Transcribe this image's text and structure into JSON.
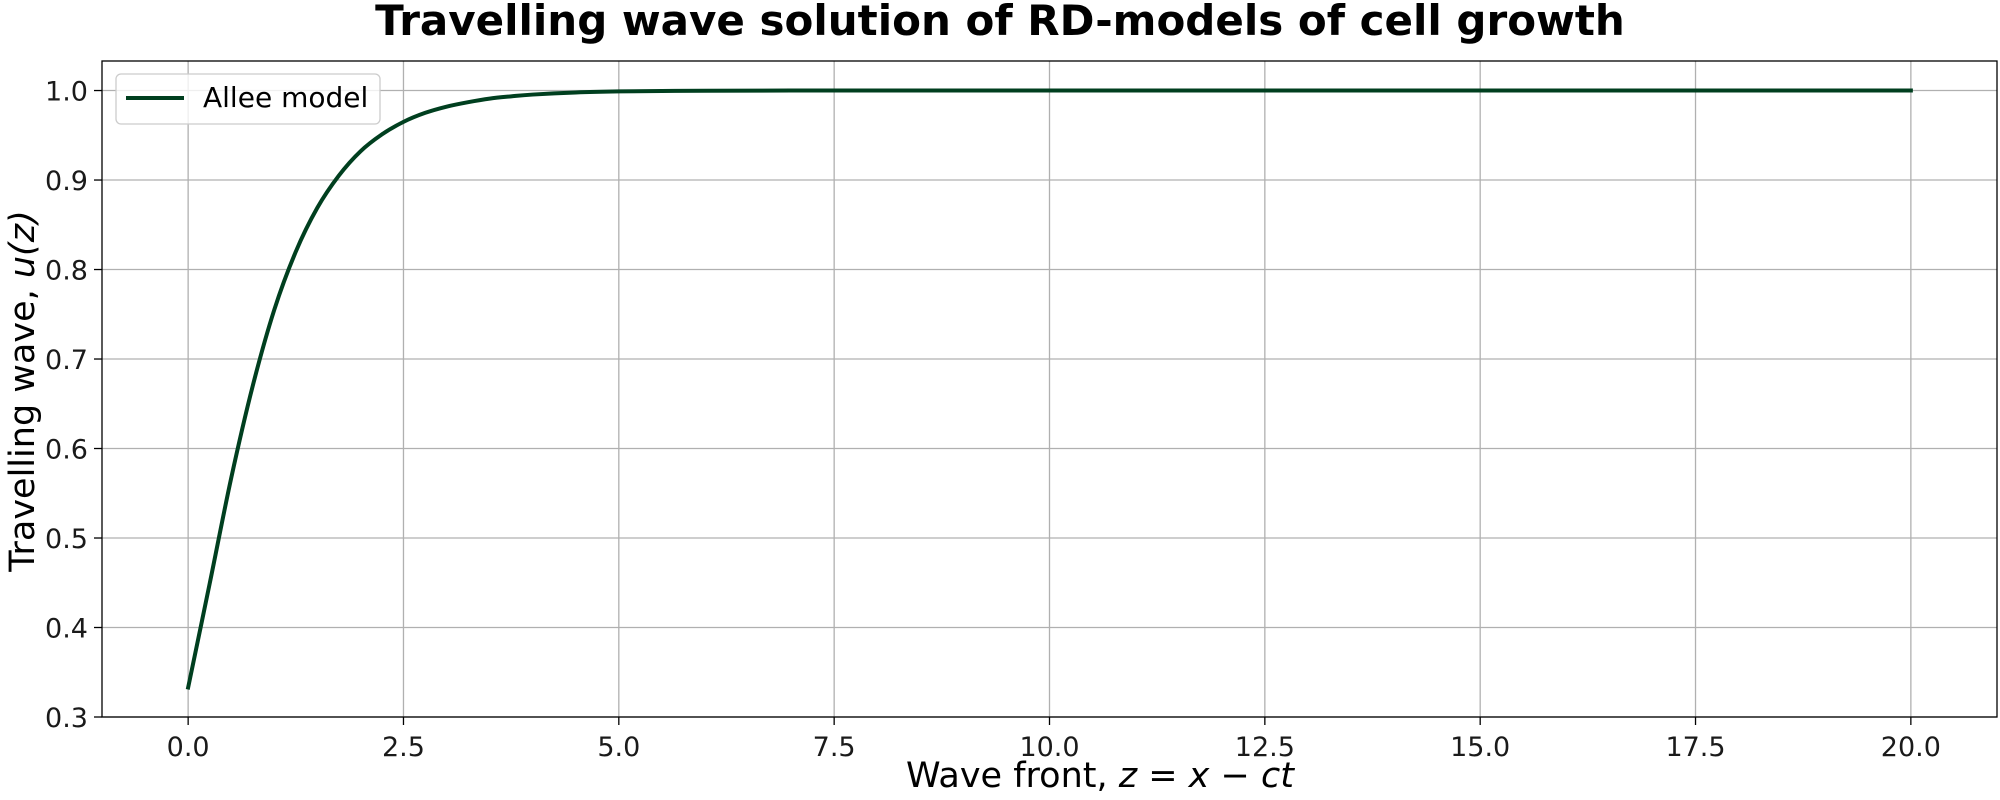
{
  "chart_data": {
    "type": "line",
    "title": "Travelling wave solution of RD-models of cell growth",
    "xlabel_text": "Wave front, ",
    "xlabel_math": "z = x − ct",
    "ylabel_text": "Travelling wave, ",
    "ylabel_math": "u(z)",
    "xlim": [
      -1.0,
      21.0
    ],
    "ylim": [
      0.3,
      1.033
    ],
    "xticks": [
      0.0,
      2.5,
      5.0,
      7.5,
      10.0,
      12.5,
      15.0,
      17.5,
      20.0
    ],
    "xtick_labels": [
      "0.0",
      "2.5",
      "5.0",
      "7.5",
      "10.0",
      "12.5",
      "15.0",
      "17.5",
      "20.0"
    ],
    "yticks": [
      0.3,
      0.4,
      0.5,
      0.6,
      0.7,
      0.8,
      0.9,
      1.0
    ],
    "ytick_labels": [
      "0.3",
      "0.4",
      "0.5",
      "0.6",
      "0.7",
      "0.8",
      "0.9",
      "1.0"
    ],
    "grid": true,
    "legend_position": "top-left",
    "series": [
      {
        "name": "Allee model",
        "color": "#003f1f",
        "x": [
          0.0,
          0.25,
          0.5,
          0.75,
          1.0,
          1.25,
          1.5,
          1.75,
          2.0,
          2.25,
          2.5,
          2.75,
          3.0,
          3.25,
          3.5,
          3.75,
          4.0,
          4.5,
          5.0,
          5.5,
          6.0,
          7.0,
          8.0,
          10.0,
          12.5,
          15.0,
          17.5,
          20.0
        ],
        "y": [
          0.333,
          0.449,
          0.567,
          0.67,
          0.755,
          0.82,
          0.869,
          0.905,
          0.932,
          0.951,
          0.965,
          0.975,
          0.982,
          0.987,
          0.991,
          0.9935,
          0.9955,
          0.9978,
          0.999,
          0.9995,
          0.9998,
          1.0,
          1.0,
          1.0,
          1.0,
          1.0,
          1.0,
          1.0
        ]
      }
    ]
  }
}
